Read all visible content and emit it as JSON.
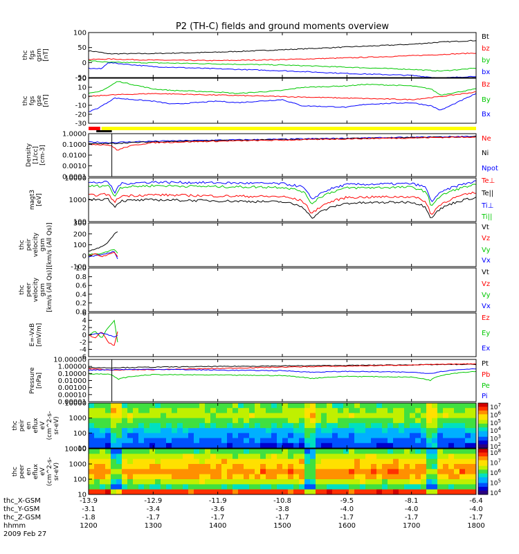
{
  "title": "P2 (TH-C) fields and ground moments overview",
  "chart_data": [
    {
      "type": "line",
      "panel": "fgs_gsm_mag",
      "ylabel": [
        "thc",
        "fgs",
        "gsm",
        "[nT]"
      ],
      "yticks": [
        100,
        50,
        0,
        -50
      ],
      "ylim": [
        -60,
        105
      ],
      "legend": [
        {
          "text": "Bt",
          "color": "#000000"
        },
        {
          "text": "bz",
          "color": "#ff0000"
        },
        {
          "text": "by",
          "color": "#00c800"
        },
        {
          "text": "bx",
          "color": "#0000ff"
        }
      ],
      "series": [
        {
          "name": "Bt",
          "color": "#000000",
          "x": [
            1200,
            1215,
            1230,
            1300,
            1400,
            1500,
            1600,
            1700,
            1745,
            1800
          ],
          "y": [
            38,
            34,
            27,
            28,
            33,
            42,
            52,
            62,
            70,
            76
          ]
        },
        {
          "name": "bz",
          "color": "#ff0000",
          "x": [
            1200,
            1230,
            1300,
            1400,
            1500,
            1600,
            1700,
            1800
          ],
          "y": [
            6,
            8,
            4,
            2,
            6,
            12,
            20,
            30
          ]
        },
        {
          "name": "by",
          "color": "#00c800",
          "x": [
            1200,
            1230,
            1300,
            1400,
            1500,
            1600,
            1700,
            1745,
            1800
          ],
          "y": [
            2,
            -4,
            -6,
            -10,
            -14,
            -22,
            -30,
            -36,
            -26
          ]
        },
        {
          "name": "bx",
          "color": "#0000ff",
          "x": [
            1200,
            1220,
            1230,
            1300,
            1400,
            1500,
            1600,
            1700,
            1745,
            1800
          ],
          "y": [
            -26,
            -28,
            -5,
            -20,
            -28,
            -35,
            -45,
            -52,
            -62,
            -55
          ]
        }
      ]
    },
    {
      "type": "line",
      "panel": "fgs_gse",
      "ylabel": [
        "thc",
        "fgs",
        "gse",
        "[nT]"
      ],
      "yticks": [
        20,
        10,
        0,
        -10,
        -20,
        -30
      ],
      "ylim": [
        -35,
        24
      ],
      "legend": [
        {
          "text": "Bz",
          "color": "#ff0000"
        },
        {
          "text": "By",
          "color": "#00c800"
        },
        {
          "text": "Bx",
          "color": "#0000ff"
        }
      ],
      "series": [
        {
          "name": "By",
          "color": "#00c800",
          "x": [
            1200,
            1215,
            1230,
            1245,
            1300,
            1330,
            1400,
            1430,
            1500,
            1530,
            1600,
            1630,
            1700,
            1730,
            1745,
            1800
          ],
          "y": [
            4,
            6,
            12,
            20,
            10,
            8,
            6,
            4,
            8,
            12,
            14,
            16,
            14,
            10,
            2,
            10
          ]
        },
        {
          "name": "Bz",
          "color": "#ff0000",
          "x": [
            1200,
            1230,
            1300,
            1400,
            1500,
            1600,
            1700,
            1745,
            1800
          ],
          "y": [
            0,
            2,
            4,
            2,
            0,
            -2,
            -4,
            0,
            6
          ]
        },
        {
          "name": "Bx",
          "color": "#0000ff",
          "x": [
            1200,
            1215,
            1225,
            1240,
            1300,
            1330,
            1400,
            1430,
            1500,
            1530,
            1600,
            1630,
            1700,
            1730,
            1745,
            1800
          ],
          "y": [
            -20,
            -15,
            -10,
            -2,
            -6,
            -10,
            -6,
            -8,
            -4,
            -12,
            -14,
            -10,
            -8,
            -12,
            -18,
            4
          ]
        }
      ]
    },
    {
      "type": "line",
      "panel": "density",
      "ylabel": [
        "Density",
        "[1/cc]",
        "[cm-3]"
      ],
      "yticks": [
        "1.0000",
        "0.1000",
        "0.0100",
        "0.0010",
        "0.0001"
      ],
      "log": true,
      "ylim": [
        0.0001,
        2
      ],
      "legend": [
        {
          "text": "Ne",
          "color": "#ff0000"
        },
        {
          "text": "Ni",
          "color": "#000000"
        },
        {
          "text": "Npot",
          "color": "#0000ff"
        }
      ],
      "series": [
        {
          "name": "Npot",
          "color": "#0000ff",
          "x": [
            1200,
            1230,
            1300,
            1400,
            1500,
            1600,
            1700,
            1800
          ],
          "y": [
            0.3,
            0.25,
            0.35,
            0.45,
            0.55,
            0.7,
            0.85,
            1.1
          ]
        },
        {
          "name": "Ni",
          "color": "#000000",
          "x": [
            1200,
            1230,
            1300,
            1400,
            1500,
            1600,
            1700,
            1800
          ],
          "y": [
            0.2,
            0.2,
            0.3,
            0.4,
            0.5,
            0.65,
            0.8,
            1.0
          ]
        },
        {
          "name": "Ne",
          "color": "#ff0000",
          "x": [
            1200,
            1230,
            1245,
            1300,
            1400,
            1500,
            1600,
            1700,
            1800
          ],
          "y": [
            0.18,
            0.15,
            0.04,
            0.25,
            0.35,
            0.45,
            0.6,
            0.75,
            0.95
          ]
        }
      ]
    },
    {
      "type": "line",
      "panel": "temperature",
      "ylabel": [
        "magt3",
        "[eV]"
      ],
      "yticks": [
        "10000",
        "1000",
        "100"
      ],
      "log": true,
      "ylim": [
        100,
        10000
      ],
      "legend": [
        {
          "text": "Te⊥",
          "color": "#ff0000"
        },
        {
          "text": "Te||",
          "color": "#000000"
        },
        {
          "text": "Ti⊥",
          "color": "#0000ff"
        },
        {
          "text": "Ti||",
          "color": "#00c800"
        }
      ],
      "series": [
        {
          "name": "Ti⊥",
          "color": "#0000ff",
          "x": [
            1200,
            1230,
            1240,
            1250,
            1300,
            1400,
            1500,
            1530,
            1545,
            1600,
            1700,
            1720,
            1730,
            1800
          ],
          "y": [
            6000,
            6500,
            1800,
            5500,
            6500,
            6000,
            5500,
            4000,
            900,
            5000,
            5500,
            4000,
            700,
            7000
          ]
        },
        {
          "name": "Ti||",
          "color": "#00c800",
          "x": [
            1200,
            1230,
            1240,
            1250,
            1300,
            1400,
            1500,
            1530,
            1545,
            1600,
            1700,
            1720,
            1730,
            1800
          ],
          "y": [
            4200,
            4500,
            1200,
            3800,
            4500,
            4000,
            3800,
            2500,
            600,
            3500,
            3800,
            2500,
            450,
            5000
          ]
        },
        {
          "name": "Te⊥",
          "color": "#ff0000",
          "x": [
            1200,
            1230,
            1240,
            1250,
            1300,
            1400,
            1500,
            1530,
            1545,
            1600,
            1700,
            1720,
            1730,
            1800
          ],
          "y": [
            1600,
            1800,
            700,
            1500,
            1700,
            1500,
            1400,
            900,
            200,
            1300,
            1400,
            900,
            160,
            2200
          ]
        },
        {
          "name": "Te||",
          "color": "#000000",
          "x": [
            1200,
            1230,
            1240,
            1250,
            1300,
            1400,
            1500,
            1530,
            1545,
            1600,
            1700,
            1720,
            1730,
            1800
          ],
          "y": [
            1000,
            1100,
            450,
            900,
            1000,
            900,
            800,
            500,
            130,
            700,
            800,
            500,
            130,
            1300
          ]
        }
      ]
    },
    {
      "type": "line",
      "panel": "peir_velocity",
      "ylabel": [
        "thc",
        "peir",
        "velocity",
        "gsm",
        "[km/s (All Qs)]"
      ],
      "yticks": [
        300,
        200,
        100,
        0,
        -100
      ],
      "ylim": [
        -100,
        300
      ],
      "legend": [
        {
          "text": "Vt",
          "color": "#000000"
        },
        {
          "text": "Vz",
          "color": "#ff0000"
        },
        {
          "text": "Vy",
          "color": "#00c800"
        },
        {
          "text": "Vx",
          "color": "#0000ff"
        }
      ],
      "series": [
        {
          "name": "Vt",
          "color": "#000000",
          "x": [
            1200,
            1210,
            1220,
            1230,
            1240,
            1245
          ],
          "y": [
            40,
            60,
            80,
            120,
            200,
            220
          ]
        },
        {
          "name": "Vy",
          "color": "#00c800",
          "x": [
            1200,
            1220,
            1240,
            1245
          ],
          "y": [
            10,
            20,
            60,
            20
          ]
        },
        {
          "name": "Vx",
          "color": "#0000ff",
          "x": [
            1200,
            1220,
            1240,
            1245
          ],
          "y": [
            -10,
            10,
            40,
            -30
          ]
        },
        {
          "name": "Vz",
          "color": "#ff0000",
          "x": [
            1200,
            1210,
            1220,
            1230,
            1240,
            1245
          ],
          "y": [
            0,
            20,
            -10,
            10,
            30,
            -10
          ]
        }
      ]
    },
    {
      "type": "line",
      "panel": "peer_velocity",
      "ylabel": [
        "thc",
        "peer",
        "velocity",
        "gsm",
        "[km/s (All Qs)]"
      ],
      "yticks": [
        "1.0",
        "0.8",
        "0.6",
        "0.4",
        "0.2",
        "0.0"
      ],
      "ylim": [
        0,
        1
      ],
      "legend": [
        {
          "text": "Vt",
          "color": "#000000"
        },
        {
          "text": "Vz",
          "color": "#ff0000"
        },
        {
          "text": "Vy",
          "color": "#00c800"
        },
        {
          "text": "Vx",
          "color": "#0000ff"
        }
      ],
      "series": []
    },
    {
      "type": "line",
      "panel": "efield",
      "ylabel": [
        "E=-VxB",
        "[mV/m]"
      ],
      "yticks": [
        6,
        4,
        2,
        0,
        -2,
        -4,
        -6
      ],
      "ylim": [
        -6,
        6
      ],
      "legend": [
        {
          "text": "Ez",
          "color": "#ff0000"
        },
        {
          "text": "Ey",
          "color": "#00c800"
        },
        {
          "text": "Ex",
          "color": "#0000ff"
        }
      ],
      "series": [
        {
          "name": "Ey",
          "color": "#00c800",
          "x": [
            1200,
            1210,
            1220,
            1230,
            1240,
            1245
          ],
          "y": [
            0,
            1,
            -1,
            2,
            4,
            -2
          ]
        },
        {
          "name": "Ez",
          "color": "#ff0000",
          "x": [
            1200,
            1210,
            1220,
            1230,
            1240,
            1245
          ],
          "y": [
            0,
            -1,
            1,
            -2,
            -3,
            1
          ]
        },
        {
          "name": "Ex",
          "color": "#0000ff",
          "x": [
            1200,
            1220,
            1240,
            1245
          ],
          "y": [
            0,
            0.5,
            -0.5,
            0
          ]
        }
      ]
    },
    {
      "type": "line",
      "panel": "pressure",
      "ylabel": [
        "Pressure",
        "[nPa]"
      ],
      "yticks": [
        "10.00000",
        "1.00000",
        "0.10000",
        "0.01000",
        "0.00100",
        "0.00010",
        "0.00001"
      ],
      "log": true,
      "ylim": [
        1e-05,
        10
      ],
      "legend": [
        {
          "text": "Pt",
          "color": "#000000"
        },
        {
          "text": "Pb",
          "color": "#ff0000"
        },
        {
          "text": "Pe",
          "color": "#00c800"
        },
        {
          "text": "Pi",
          "color": "#0000ff"
        }
      ],
      "series": [
        {
          "name": "Pt",
          "color": "#000000",
          "x": [
            1200,
            1230,
            1300,
            1400,
            1500,
            1600,
            1700,
            1800
          ],
          "y": [
            0.7,
            0.65,
            0.8,
            1.0,
            1.2,
            1.4,
            1.7,
            2.0
          ]
        },
        {
          "name": "Pb",
          "color": "#ff0000",
          "x": [
            1200,
            1230,
            1300,
            1400,
            1500,
            1600,
            1700,
            1800
          ],
          "y": [
            0.5,
            0.3,
            0.35,
            0.5,
            0.8,
            1.1,
            1.6,
            2.4
          ]
        },
        {
          "name": "Pi",
          "color": "#0000ff",
          "x": [
            1200,
            1230,
            1300,
            1400,
            1500,
            1545,
            1600,
            1700,
            1730,
            1800
          ],
          "y": [
            0.3,
            0.35,
            0.4,
            0.3,
            0.25,
            0.15,
            0.2,
            0.15,
            0.1,
            0.5
          ]
        },
        {
          "name": "Pe",
          "color": "#00c800",
          "x": [
            1200,
            1230,
            1245,
            1300,
            1400,
            1500,
            1545,
            1600,
            1700,
            1730,
            1800
          ],
          "y": [
            0.09,
            0.08,
            0.015,
            0.07,
            0.06,
            0.05,
            0.02,
            0.04,
            0.03,
            0.01,
            0.2
          ]
        }
      ]
    },
    {
      "type": "heatmap",
      "panel": "peir_spectrogram",
      "ylabel": [
        "thc",
        "peir",
        "en",
        "eflux",
        "eV",
        "(cm^2-s-",
        "sr-eV)"
      ],
      "yticks": [
        "10000",
        "1000",
        "100",
        "10"
      ],
      "log": true,
      "colorbar_ticks": [
        "10^7",
        "10^6",
        "10^5",
        "10^4",
        "10^3",
        "10^2"
      ]
    },
    {
      "type": "heatmap",
      "panel": "peer_spectrogram",
      "ylabel": [
        "thc",
        "peer",
        "en",
        "eflux",
        "eV",
        "(cm^2-s-",
        "sr-eV)"
      ],
      "yticks": [
        "10000",
        "1000",
        "100",
        "10"
      ],
      "log": true,
      "colorbar_ticks": [
        "10^8",
        "10^7",
        "10^6",
        "10^5",
        "10^4"
      ]
    }
  ],
  "x_axis": {
    "ticks": [
      1200,
      1300,
      1400,
      1500,
      1600,
      1700,
      1800
    ],
    "rows": [
      {
        "label": "thc_X-GSM",
        "values": [
          "-13.9",
          "-12.9",
          "-11.9",
          "-10.8",
          "-9.5",
          "-8.1",
          "-6.4"
        ]
      },
      {
        "label": "thc_Y-GSM",
        "values": [
          "-3.1",
          "-3.4",
          "-3.6",
          "-3.8",
          "-4.0",
          "-4.0",
          "-4.0"
        ]
      },
      {
        "label": "thc_Z-GSM",
        "values": [
          "-1.8",
          "-1.7",
          "-1.7",
          "-1.7",
          "-1.7",
          "-1.7",
          "-1.7"
        ]
      },
      {
        "label": "hhmm",
        "values": [
          "1200",
          "1300",
          "1400",
          "1500",
          "1600",
          "1700",
          "1800"
        ]
      }
    ],
    "date": "2009 Feb 27"
  }
}
